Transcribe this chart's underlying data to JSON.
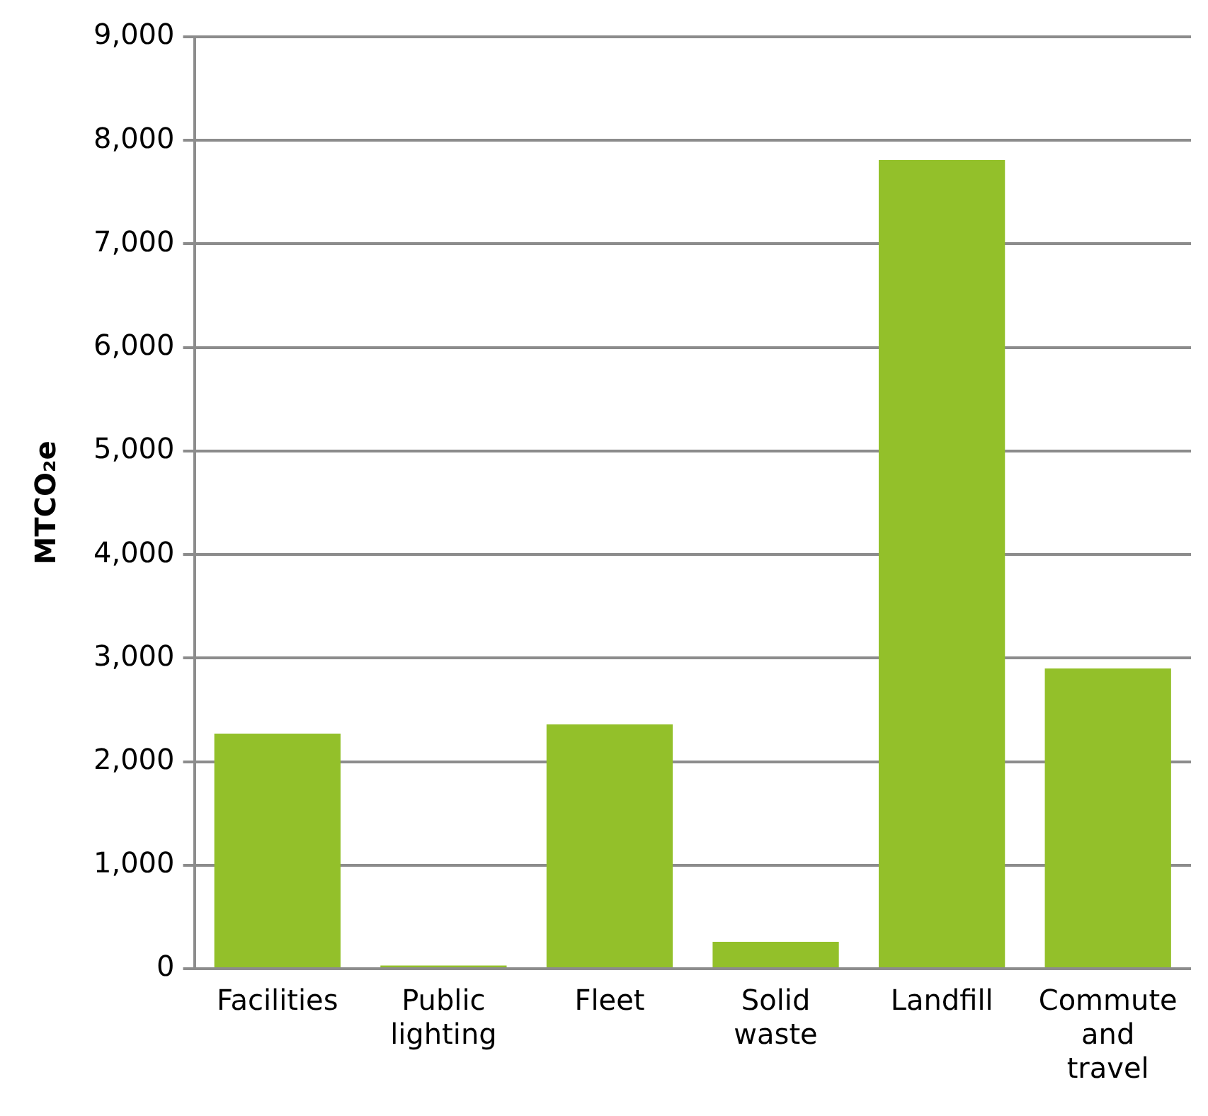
{
  "chart_data": {
    "type": "bar",
    "ylabel": "MTCO₂e",
    "categories": [
      "Facilities",
      "Public lighting",
      "Fleet",
      "Solid waste",
      "Landfill",
      "Commute and travel"
    ],
    "values": [
      2270,
      30,
      2360,
      260,
      7810,
      2900
    ],
    "color": "#93c02a",
    "ylim": [
      0,
      9000
    ],
    "yticks": [
      0,
      {
        "value": 1000,
        "label": "1,000"
      },
      {
        "value": 2000,
        "label": "2,000"
      },
      {
        "value": 3000,
        "label": "3,000"
      },
      {
        "value": 4000,
        "label": "4,000"
      },
      {
        "value": 5000,
        "label": "5,000"
      },
      {
        "value": 6000,
        "label": "6,000"
      },
      {
        "value": 7000,
        "label": "7,000"
      },
      {
        "value": 8000,
        "label": "8,000"
      },
      {
        "value": 9000,
        "label": "9,000"
      }
    ],
    "grid": "y",
    "legend": false
  }
}
